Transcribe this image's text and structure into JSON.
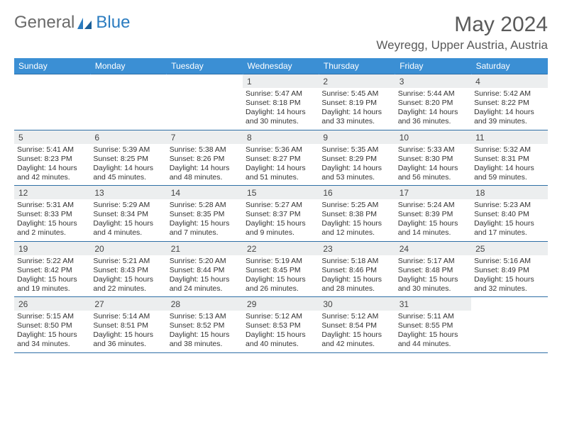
{
  "logo": {
    "text1": "General",
    "text2": "Blue"
  },
  "title": "May 2024",
  "location": "Weyregg, Upper Austria, Austria",
  "colors": {
    "header_bg": "#3b8fd4",
    "header_text": "#ffffff",
    "daynum_bg": "#eceeef",
    "border": "#2f6fa6",
    "logo_gray": "#6a6a6a",
    "logo_blue": "#2b7cc0"
  },
  "dow": [
    "Sunday",
    "Monday",
    "Tuesday",
    "Wednesday",
    "Thursday",
    "Friday",
    "Saturday"
  ],
  "weeks": [
    [
      null,
      null,
      null,
      {
        "n": "1",
        "sunrise": "5:47 AM",
        "sunset": "8:18 PM",
        "daylight": "14 hours and 30 minutes."
      },
      {
        "n": "2",
        "sunrise": "5:45 AM",
        "sunset": "8:19 PM",
        "daylight": "14 hours and 33 minutes."
      },
      {
        "n": "3",
        "sunrise": "5:44 AM",
        "sunset": "8:20 PM",
        "daylight": "14 hours and 36 minutes."
      },
      {
        "n": "4",
        "sunrise": "5:42 AM",
        "sunset": "8:22 PM",
        "daylight": "14 hours and 39 minutes."
      }
    ],
    [
      {
        "n": "5",
        "sunrise": "5:41 AM",
        "sunset": "8:23 PM",
        "daylight": "14 hours and 42 minutes."
      },
      {
        "n": "6",
        "sunrise": "5:39 AM",
        "sunset": "8:25 PM",
        "daylight": "14 hours and 45 minutes."
      },
      {
        "n": "7",
        "sunrise": "5:38 AM",
        "sunset": "8:26 PM",
        "daylight": "14 hours and 48 minutes."
      },
      {
        "n": "8",
        "sunrise": "5:36 AM",
        "sunset": "8:27 PM",
        "daylight": "14 hours and 51 minutes."
      },
      {
        "n": "9",
        "sunrise": "5:35 AM",
        "sunset": "8:29 PM",
        "daylight": "14 hours and 53 minutes."
      },
      {
        "n": "10",
        "sunrise": "5:33 AM",
        "sunset": "8:30 PM",
        "daylight": "14 hours and 56 minutes."
      },
      {
        "n": "11",
        "sunrise": "5:32 AM",
        "sunset": "8:31 PM",
        "daylight": "14 hours and 59 minutes."
      }
    ],
    [
      {
        "n": "12",
        "sunrise": "5:31 AM",
        "sunset": "8:33 PM",
        "daylight": "15 hours and 2 minutes."
      },
      {
        "n": "13",
        "sunrise": "5:29 AM",
        "sunset": "8:34 PM",
        "daylight": "15 hours and 4 minutes."
      },
      {
        "n": "14",
        "sunrise": "5:28 AM",
        "sunset": "8:35 PM",
        "daylight": "15 hours and 7 minutes."
      },
      {
        "n": "15",
        "sunrise": "5:27 AM",
        "sunset": "8:37 PM",
        "daylight": "15 hours and 9 minutes."
      },
      {
        "n": "16",
        "sunrise": "5:25 AM",
        "sunset": "8:38 PM",
        "daylight": "15 hours and 12 minutes."
      },
      {
        "n": "17",
        "sunrise": "5:24 AM",
        "sunset": "8:39 PM",
        "daylight": "15 hours and 14 minutes."
      },
      {
        "n": "18",
        "sunrise": "5:23 AM",
        "sunset": "8:40 PM",
        "daylight": "15 hours and 17 minutes."
      }
    ],
    [
      {
        "n": "19",
        "sunrise": "5:22 AM",
        "sunset": "8:42 PM",
        "daylight": "15 hours and 19 minutes."
      },
      {
        "n": "20",
        "sunrise": "5:21 AM",
        "sunset": "8:43 PM",
        "daylight": "15 hours and 22 minutes."
      },
      {
        "n": "21",
        "sunrise": "5:20 AM",
        "sunset": "8:44 PM",
        "daylight": "15 hours and 24 minutes."
      },
      {
        "n": "22",
        "sunrise": "5:19 AM",
        "sunset": "8:45 PM",
        "daylight": "15 hours and 26 minutes."
      },
      {
        "n": "23",
        "sunrise": "5:18 AM",
        "sunset": "8:46 PM",
        "daylight": "15 hours and 28 minutes."
      },
      {
        "n": "24",
        "sunrise": "5:17 AM",
        "sunset": "8:48 PM",
        "daylight": "15 hours and 30 minutes."
      },
      {
        "n": "25",
        "sunrise": "5:16 AM",
        "sunset": "8:49 PM",
        "daylight": "15 hours and 32 minutes."
      }
    ],
    [
      {
        "n": "26",
        "sunrise": "5:15 AM",
        "sunset": "8:50 PM",
        "daylight": "15 hours and 34 minutes."
      },
      {
        "n": "27",
        "sunrise": "5:14 AM",
        "sunset": "8:51 PM",
        "daylight": "15 hours and 36 minutes."
      },
      {
        "n": "28",
        "sunrise": "5:13 AM",
        "sunset": "8:52 PM",
        "daylight": "15 hours and 38 minutes."
      },
      {
        "n": "29",
        "sunrise": "5:12 AM",
        "sunset": "8:53 PM",
        "daylight": "15 hours and 40 minutes."
      },
      {
        "n": "30",
        "sunrise": "5:12 AM",
        "sunset": "8:54 PM",
        "daylight": "15 hours and 42 minutes."
      },
      {
        "n": "31",
        "sunrise": "5:11 AM",
        "sunset": "8:55 PM",
        "daylight": "15 hours and 44 minutes."
      },
      null
    ]
  ],
  "labels": {
    "sunrise": "Sunrise:",
    "sunset": "Sunset:",
    "daylight": "Daylight:"
  }
}
